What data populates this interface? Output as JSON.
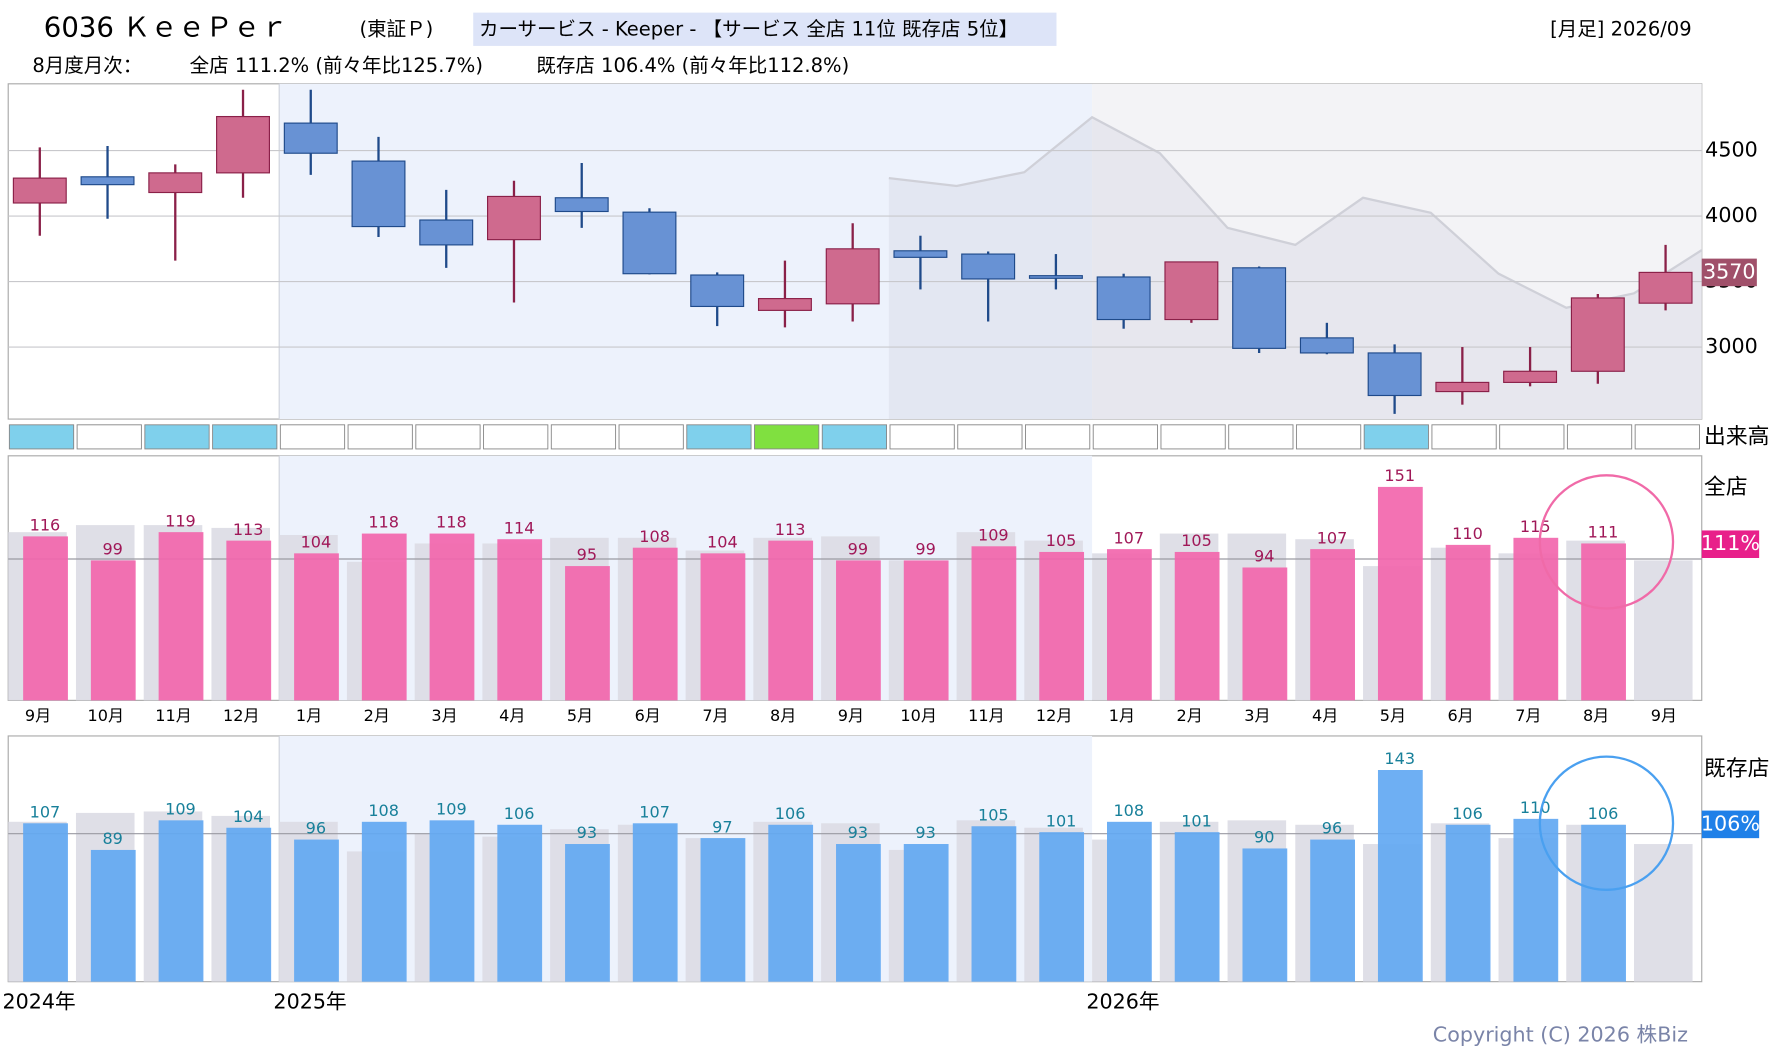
{
  "header": {
    "title": "6036 ＫｅｅＰｅｒ",
    "market": "(東証Ｐ)",
    "category": "カーサービス - Keeper - 【サービス 全店 11位 既存店 5位】",
    "period": "[月足] 2026/09",
    "monthly_label": "8月度月次：",
    "all_store": "全店 111.2% (前々年比125.7%)",
    "existing_store": "既存店 106.4% (前々年比112.8%)"
  },
  "footer": {
    "copyright": "Copyright (C) 2026 株Biz"
  },
  "chart_data": [
    {
      "type": "candlestick",
      "open": [
        4100,
        4300,
        4180,
        4330,
        4710,
        4420,
        3970,
        3820,
        4140,
        4030,
        3550,
        3280,
        3330,
        3735,
        3710,
        3545,
        3535,
        3210,
        3605,
        3070,
        2955,
        2660,
        2730,
        2815,
        3335
      ],
      "high": [
        4525,
        4535,
        4395,
        4965,
        4965,
        4605,
        4200,
        4270,
        4405,
        4060,
        3570,
        3660,
        3945,
        3850,
        3730,
        3710,
        3560,
        3650,
        3615,
        3185,
        3020,
        3000,
        3000,
        3405,
        3780
      ],
      "low": [
        3850,
        3980,
        3660,
        4140,
        4315,
        3840,
        3605,
        3340,
        3910,
        3555,
        3160,
        3150,
        3195,
        3440,
        3195,
        3440,
        3140,
        3185,
        2955,
        2945,
        2490,
        2560,
        2700,
        2720,
        3280
      ],
      "close": [
        4290,
        4240,
        4330,
        4760,
        4480,
        3920,
        3780,
        4150,
        4035,
        3560,
        3310,
        3370,
        3750,
        3685,
        3520,
        3525,
        3210,
        3650,
        2990,
        2955,
        2630,
        2730,
        2815,
        3375,
        3570
      ],
      "up_color": "#cf6a8e",
      "down_color": "#6892d4",
      "ylim": [
        2450,
        5010
      ],
      "yticks": [
        3000,
        3500,
        4000,
        4500
      ],
      "grid": true,
      "line": {
        "color": "#cfd0d8",
        "values": [
          null,
          null,
          null,
          null,
          null,
          null,
          null,
          null,
          null,
          null,
          null,
          null,
          4290,
          4230,
          4335,
          4755,
          4480,
          3910,
          3780,
          4140,
          4025,
          3560,
          3300,
          3410,
          3740
        ]
      },
      "volume_label": "出来高",
      "volume_colors": [
        "#7fd0ec",
        "#ffffff",
        "#7fd0ec",
        "#7fd0ec",
        "#ffffff",
        "#ffffff",
        "#ffffff",
        "#ffffff",
        "#ffffff",
        "#ffffff",
        "#7fd0ec",
        "#80e040",
        "#7fd0ec",
        "#ffffff",
        "#ffffff",
        "#ffffff",
        "#ffffff",
        "#ffffff",
        "#ffffff",
        "#ffffff",
        "#7fd0ec",
        "#ffffff",
        "#ffffff",
        "#ffffff",
        "#ffffff"
      ]
    },
    {
      "type": "bar",
      "name": "全店",
      "categories": [
        "9月",
        "10月",
        "11月",
        "12月",
        "1月",
        "2月",
        "3月",
        "4月",
        "5月",
        "6月",
        "7月",
        "8月",
        "9月",
        "10月",
        "11月",
        "12月",
        "1月",
        "2月",
        "3月",
        "4月",
        "5月",
        "6月",
        "7月",
        "8月",
        "9月"
      ],
      "values": [
        116,
        99,
        119,
        113,
        104,
        118,
        118,
        114,
        95,
        108,
        104,
        113,
        99,
        99,
        109,
        105,
        107,
        105,
        94,
        107,
        151,
        110,
        115,
        111,
        null
      ],
      "prev_values": [
        119,
        124,
        124,
        122,
        117,
        98,
        111,
        111,
        115,
        115,
        106,
        115,
        116,
        99,
        119,
        113,
        104,
        118,
        118,
        114,
        95,
        108,
        104,
        113,
        99
      ],
      "color": "#f266ad",
      "prev_color": "#dcdce4",
      "label_color": "#a01858",
      "ylim": [
        0,
        173
      ],
      "reference": 100,
      "badge": "111%",
      "badge_color": "#e8208a"
    },
    {
      "type": "bar",
      "name": "既存店",
      "values": [
        107,
        89,
        109,
        104,
        96,
        108,
        109,
        106,
        93,
        107,
        97,
        106,
        93,
        93,
        105,
        101,
        108,
        101,
        90,
        96,
        143,
        106,
        110,
        106,
        null
      ],
      "prev_values": [
        108,
        114,
        115,
        112,
        108,
        88,
        100,
        98,
        103,
        106,
        97,
        108,
        107,
        89,
        109,
        104,
        96,
        108,
        109,
        106,
        93,
        107,
        97,
        106,
        93
      ],
      "color": "#62a8f2",
      "prev_color": "#dcdce4",
      "label_color": "#18809a",
      "ylim": [
        0,
        166
      ],
      "reference": 100,
      "badge": "106%",
      "badge_color": "#1f80e8",
      "year_labels": [
        "2024年",
        "2025年",
        "2026年"
      ]
    }
  ]
}
